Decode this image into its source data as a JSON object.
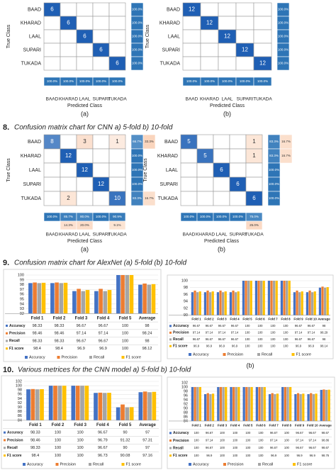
{
  "chart_data": [
    {
      "type": "heatmap",
      "label": "(a)",
      "xlabel": "Predicted Class",
      "ylabel": "True Class",
      "categories": [
        "BAAD",
        "KHARAD",
        "LAAL",
        "SUPARI",
        "TUKADA"
      ],
      "values": [
        [
          6,
          null,
          null,
          null,
          null
        ],
        [
          null,
          6,
          null,
          null,
          null
        ],
        [
          null,
          null,
          6,
          null,
          null
        ],
        [
          null,
          null,
          null,
          6,
          null
        ],
        [
          null,
          null,
          null,
          null,
          6
        ]
      ],
      "row_correct": [
        100,
        100,
        100,
        100,
        100
      ],
      "row_correct_labels": [
        "100.0%",
        "100.0%",
        "100.0%",
        "100.0%",
        "100.0%"
      ],
      "col_correct": [
        100,
        100,
        100,
        100,
        100
      ],
      "col_correct_labels": [
        "100.0%",
        "100.0%",
        "100.0%",
        "100.0%",
        "100.0%"
      ]
    },
    {
      "type": "heatmap",
      "label": "(b)",
      "xlabel": "Predicted Class",
      "ylabel": "True Class",
      "categories": [
        "BAAD",
        "KHARAD",
        "LAAL",
        "SUPARI",
        "TUKADA"
      ],
      "values": [
        [
          12,
          null,
          null,
          null,
          null
        ],
        [
          null,
          12,
          null,
          null,
          null
        ],
        [
          null,
          null,
          12,
          null,
          null
        ],
        [
          null,
          null,
          null,
          12,
          null
        ],
        [
          null,
          null,
          null,
          null,
          12
        ]
      ],
      "row_correct": [
        100,
        100,
        100,
        100,
        100
      ],
      "row_correct_labels": [
        "100.0%",
        "100.0%",
        "100.0%",
        "100.0%",
        "100.0%"
      ],
      "col_correct": [
        100,
        100,
        100,
        100,
        100
      ],
      "col_correct_labels": [
        "100.0%",
        "100.0%",
        "100.0%",
        "100.0%",
        "100.0%"
      ]
    },
    {
      "type": "heatmap",
      "label": "(a)",
      "xlabel": "Predicted Class",
      "ylabel": "True Class",
      "categories": [
        "BAAD",
        "KHARAD",
        "LAAL",
        "SUPARI",
        "TUKADA"
      ],
      "values": [
        [
          8,
          null,
          3,
          null,
          1
        ],
        [
          null,
          12,
          null,
          null,
          null
        ],
        [
          null,
          null,
          12,
          null,
          null
        ],
        [
          null,
          null,
          null,
          12,
          null
        ],
        [
          null,
          2,
          null,
          null,
          10
        ]
      ],
      "row_correct": [
        66.7,
        100,
        100,
        100,
        83.3
      ],
      "row_correct_labels": [
        "66.7%",
        "100.0%",
        "100.0%",
        "100.0%",
        "83.3%"
      ],
      "row_error": [
        33.3,
        null,
        null,
        null,
        16.7
      ],
      "row_error_labels": [
        "33.3%",
        null,
        null,
        null,
        "16.7%"
      ],
      "col_correct": [
        100,
        85.7,
        80,
        100,
        90.9
      ],
      "col_correct_labels": [
        "100.0%",
        "85.7%",
        "80.0%",
        "100.0%",
        "90.9%"
      ],
      "col_error": [
        null,
        14.3,
        20,
        null,
        9.1
      ],
      "col_error_labels": [
        null,
        "14.3%",
        "20.0%",
        null,
        "9.1%"
      ]
    },
    {
      "type": "heatmap",
      "label": "(b)",
      "xlabel": "Predicted Class",
      "ylabel": "True Class",
      "categories": [
        "BAAD",
        "KHARAD",
        "LAAL",
        "SUPARI",
        "TUKADA"
      ],
      "values": [
        [
          5,
          null,
          null,
          null,
          1
        ],
        [
          null,
          5,
          null,
          null,
          1
        ],
        [
          null,
          null,
          6,
          null,
          null
        ],
        [
          null,
          null,
          null,
          6,
          null
        ],
        [
          null,
          null,
          null,
          null,
          6
        ]
      ],
      "row_correct": [
        83.3,
        83.3,
        100,
        100,
        100
      ],
      "row_correct_labels": [
        "83.3%",
        "83.3%",
        "100.0%",
        "100.0%",
        "100.0%"
      ],
      "row_error": [
        16.7,
        16.7,
        null,
        null,
        null
      ],
      "row_error_labels": [
        "16.7%",
        "16.7%",
        null,
        null,
        null
      ],
      "col_correct": [
        100,
        100,
        100,
        100,
        75
      ],
      "col_correct_labels": [
        "100.0%",
        "100.0%",
        "100.0%",
        "100.0%",
        "75.0%"
      ],
      "col_error": [
        null,
        null,
        null,
        null,
        25
      ],
      "col_error_labels": [
        null,
        null,
        null,
        null,
        "25.0%"
      ]
    },
    {
      "type": "bar",
      "categories": [
        "Fold 1",
        "Fold 2",
        "Fold 3",
        "Fold 4",
        "Fold 5",
        "Average"
      ],
      "ylim": [
        92,
        100
      ],
      "yticks": [
        92,
        93,
        94,
        95,
        96,
        97,
        98,
        99,
        100
      ],
      "grid": true,
      "series": [
        {
          "name": "Accuracy",
          "color": "#4472c4",
          "values": [
            98.33,
            98.33,
            96.67,
            96.67,
            100,
            98
          ]
        },
        {
          "name": "Precision",
          "color": "#ed7d31",
          "values": [
            98.46,
            98.46,
            97.14,
            97.14,
            100,
            98.24
          ]
        },
        {
          "name": "Recall",
          "color": "#a5a5a5",
          "values": [
            98.33,
            98.33,
            96.67,
            96.67,
            100,
            98
          ]
        },
        {
          "name": "F1 score",
          "color": "#ffc000",
          "values": [
            98.4,
            98.4,
            96.9,
            96.9,
            100,
            98.12
          ]
        }
      ]
    },
    {
      "type": "bar",
      "label": "(b)",
      "categories": [
        "Fold 1",
        "Fold 2",
        "Fold 3",
        "Fold 4",
        "Fold 5",
        "Fold 6",
        "Fold 7",
        "Fold 8",
        "Fold 9",
        "Fold 10",
        "Average"
      ],
      "ylim": [
        90,
        100
      ],
      "yticks": [
        90,
        92,
        94,
        96,
        98,
        100
      ],
      "grid": true,
      "series": [
        {
          "name": "Accuracy",
          "color": "#4472c4",
          "values": [
            96.67,
            96.67,
            96.67,
            96.67,
            100,
            100,
            100,
            100,
            96.67,
            96.67,
            98
          ]
        },
        {
          "name": "Precision",
          "color": "#ed7d31",
          "values": [
            97.14,
            97.14,
            97.14,
            97.14,
            100,
            100,
            100,
            100,
            97.14,
            97.14,
            98.29
          ]
        },
        {
          "name": "Recall",
          "color": "#a5a5a5",
          "values": [
            96.67,
            96.67,
            96.67,
            96.67,
            100,
            100,
            100,
            100,
            96.67,
            96.67,
            98
          ]
        },
        {
          "name": "F1 score",
          "color": "#ffc000",
          "values": [
            96.9,
            96.9,
            96.9,
            96.9,
            100,
            100,
            100,
            100,
            96.9,
            96.9,
            98.14
          ]
        }
      ]
    },
    {
      "type": "bar",
      "categories": [
        "Fold 1",
        "Fold 2",
        "Fold 3",
        "Fold 4",
        "Fold 5",
        "Average"
      ],
      "ylim": [
        84,
        102
      ],
      "yticks": [
        84,
        86,
        88,
        90,
        92,
        94,
        96,
        98,
        100,
        102
      ],
      "grid": true,
      "series": [
        {
          "name": "Accuracy",
          "color": "#4472c4",
          "values": [
            98.33,
            100,
            100,
            96.67,
            90,
            97
          ]
        },
        {
          "name": "Precision",
          "color": "#ed7d31",
          "values": [
            98.46,
            100,
            100,
            96.79,
            91.32,
            97.31
          ]
        },
        {
          "name": "Recall",
          "color": "#a5a5a5",
          "values": [
            98.33,
            100,
            100,
            96.67,
            90,
            97
          ]
        },
        {
          "name": "F1 score",
          "color": "#ffc000",
          "values": [
            98.4,
            100,
            100,
            96.73,
            90.08,
            97.16
          ]
        }
      ]
    },
    {
      "type": "bar",
      "categories": [
        "Fold 1",
        "Fold 2",
        "Fold 3",
        "Fold 4",
        "Fold 5",
        "Fold 6",
        "Fold 7",
        "Fold 8",
        "Fold 9",
        "Fold 10",
        "Average"
      ],
      "ylim": [
        84,
        102
      ],
      "yticks": [
        84,
        86,
        88,
        90,
        92,
        94,
        96,
        98,
        100,
        102
      ],
      "grid": true,
      "series": [
        {
          "name": "Accuracy",
          "color": "#4472c4",
          "values": [
            100,
            96.67,
            100,
            100,
            100,
            100,
            96.67,
            100,
            96.67,
            96.67,
            98.67
          ]
        },
        {
          "name": "Precision",
          "color": "#ed7d31",
          "values": [
            100,
            97.14,
            100,
            100,
            100,
            100,
            97.14,
            100,
            97.14,
            97.14,
            98.86
          ]
        },
        {
          "name": "Recall",
          "color": "#a5a5a5",
          "values": [
            100,
            96.67,
            100,
            100,
            100,
            100,
            96.67,
            100,
            96.67,
            96.67,
            98.67
          ]
        },
        {
          "name": "F1 score",
          "color": "#ffc000",
          "values": [
            100,
            96.9,
            100,
            100,
            100,
            100,
            96.9,
            100,
            96.9,
            96.9,
            98.76
          ]
        }
      ]
    }
  ],
  "captions": [
    {
      "number": "8.",
      "text": "Confusion matrix chart for CNN  a) 5-fold  b) 10-fold"
    },
    {
      "number": "9.",
      "text": "Confusion matrix chart for AlexNet  (a) 5-fold  (b) 10-fold"
    },
    {
      "number": "10.",
      "text": "Various metrices for the CNN model a) 5-fold  b) 10-fold"
    }
  ]
}
